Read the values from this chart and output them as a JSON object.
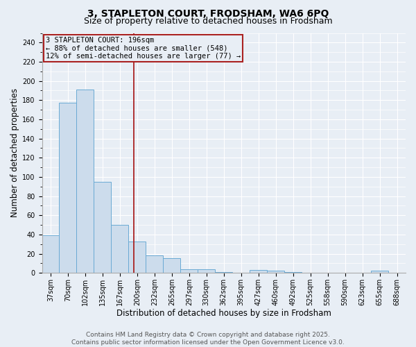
{
  "title_line1": "3, STAPLETON COURT, FRODSHAM, WA6 6PQ",
  "title_line2": "Size of property relative to detached houses in Frodsham",
  "xlabel": "Distribution of detached houses by size in Frodsham",
  "ylabel": "Number of detached properties",
  "bar_color": "#ccdcec",
  "bar_edge_color": "#6aaad4",
  "categories": [
    "37sqm",
    "70sqm",
    "102sqm",
    "135sqm",
    "167sqm",
    "200sqm",
    "232sqm",
    "265sqm",
    "297sqm",
    "330sqm",
    "362sqm",
    "395sqm",
    "427sqm",
    "460sqm",
    "492sqm",
    "525sqm",
    "558sqm",
    "590sqm",
    "623sqm",
    "655sqm",
    "688sqm"
  ],
  "values": [
    39,
    177,
    191,
    95,
    50,
    33,
    18,
    15,
    4,
    4,
    1,
    0,
    3,
    2,
    1,
    0,
    0,
    0,
    0,
    2,
    0
  ],
  "vline_x": 4.82,
  "vline_color": "#aa2222",
  "annotation_text": "3 STAPLETON COURT: 196sqm\n← 88% of detached houses are smaller (548)\n12% of semi-detached houses are larger (77) →",
  "annotation_box_color": "#aa2222",
  "ylim": [
    0,
    250
  ],
  "yticks": [
    0,
    20,
    40,
    60,
    80,
    100,
    120,
    140,
    160,
    180,
    200,
    220,
    240
  ],
  "background_color": "#e8eef5",
  "grid_color": "#ffffff",
  "footer_line1": "Contains HM Land Registry data © Crown copyright and database right 2025.",
  "footer_line2": "Contains public sector information licensed under the Open Government Licence v3.0.",
  "title_fontsize": 10,
  "subtitle_fontsize": 9,
  "axis_label_fontsize": 8.5,
  "tick_fontsize": 7,
  "footer_fontsize": 6.5,
  "ann_fontsize": 7.5
}
